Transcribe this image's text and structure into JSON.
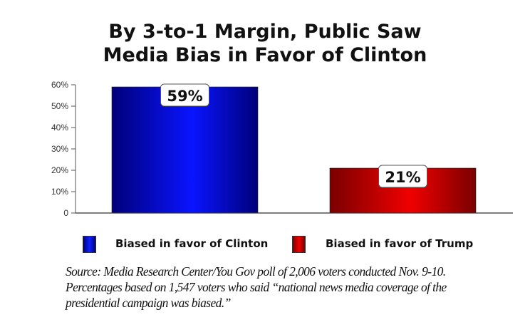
{
  "chart_data": {
    "type": "bar",
    "title_lines": [
      "By 3-to-1 Margin, Public Saw",
      "Media Bias in Favor of Clinton"
    ],
    "categories": [
      "Biased in favor of Clinton",
      "Biased in favor of Trump"
    ],
    "values": [
      59,
      21
    ],
    "data_labels": [
      "59%",
      "21%"
    ],
    "colors": [
      "#0000ff",
      "#e00000"
    ],
    "ylim": [
      0,
      60
    ],
    "yticks": [
      0,
      10,
      20,
      30,
      40,
      50,
      60
    ],
    "ytick_labels": [
      "0",
      "10%",
      "20%",
      "30%",
      "40%",
      "50%",
      "60%"
    ],
    "grid": false,
    "legend_position": "bottom",
    "legend": [
      "Biased in favor of Clinton",
      "Biased in favor of Trump"
    ]
  },
  "source_lines": [
    "Source: Media Research Center/You Gov poll of 2,006 voters conducted Nov. 9-10.",
    "Percentages based on 1,547 voters who said “national news media coverage of the",
    "presidential campaign was biased.”"
  ]
}
